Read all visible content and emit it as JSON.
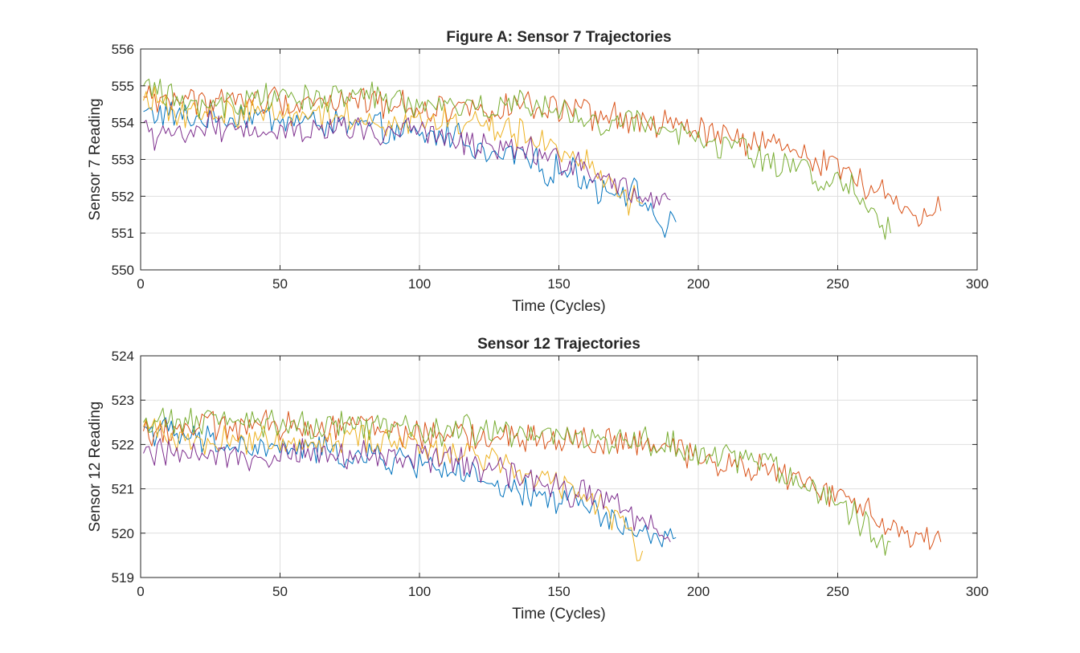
{
  "chart_data": [
    {
      "type": "line",
      "title": "Figure A: Sensor 7 Trajectories",
      "xlabel": "Time (Cycles)",
      "ylabel": "Sensor 7 Reading",
      "xlim": [
        0,
        300
      ],
      "ylim": [
        550,
        556
      ],
      "xticks": [
        "0",
        "50",
        "100",
        "150",
        "200",
        "250",
        "300"
      ],
      "yticks": [
        "550",
        "551",
        "552",
        "553",
        "554",
        "555",
        "556"
      ],
      "grid": true,
      "series": [
        {
          "color": "#0072BD",
          "x": [
            1,
            20,
            40,
            60,
            80,
            100,
            115,
            125,
            135,
            145,
            155,
            165,
            175,
            183,
            188,
            192
          ],
          "y": [
            554.3,
            554.1,
            554.2,
            554.0,
            553.9,
            553.6,
            553.7,
            553.0,
            553.2,
            552.7,
            552.7,
            552.2,
            552.2,
            551.7,
            551.0,
            551.3
          ]
        },
        {
          "color": "#D95319",
          "x": [
            1,
            20,
            40,
            60,
            80,
            100,
            120,
            140,
            160,
            180,
            200,
            215,
            230,
            245,
            255,
            265,
            275,
            287
          ],
          "y": [
            554.7,
            554.6,
            554.6,
            554.6,
            554.6,
            554.4,
            554.4,
            554.4,
            554.2,
            554.0,
            553.8,
            553.5,
            553.3,
            553.0,
            552.6,
            552.1,
            551.6,
            551.6
          ]
        },
        {
          "color": "#EDB120",
          "x": [
            1,
            20,
            40,
            60,
            80,
            100,
            120,
            135,
            145,
            155,
            165,
            172,
            180
          ],
          "y": [
            554.6,
            554.2,
            554.3,
            554.3,
            554.1,
            554.0,
            554.0,
            553.7,
            553.4,
            553.1,
            552.7,
            552.0,
            551.8
          ]
        },
        {
          "color": "#7E2F8E",
          "x": [
            1,
            5,
            20,
            40,
            60,
            80,
            100,
            115,
            125,
            135,
            145,
            155,
            165,
            175,
            183,
            190
          ],
          "y": [
            554.0,
            553.4,
            553.9,
            553.9,
            553.8,
            553.8,
            553.7,
            553.5,
            553.3,
            553.4,
            553.1,
            552.9,
            552.6,
            552.2,
            551.9,
            551.9
          ]
        },
        {
          "color": "#77AC30",
          "x": [
            1,
            20,
            40,
            60,
            80,
            100,
            120,
            140,
            160,
            180,
            200,
            215,
            230,
            245,
            255,
            262,
            269
          ],
          "y": [
            555.0,
            554.4,
            554.6,
            554.7,
            554.7,
            554.5,
            554.4,
            554.5,
            554.0,
            554.0,
            553.5,
            553.4,
            552.8,
            552.5,
            552.2,
            551.8,
            551.0
          ]
        }
      ]
    },
    {
      "type": "line",
      "title": "Sensor 12 Trajectories",
      "xlabel": "Time (Cycles)",
      "ylabel": "Sensor 12 Reading",
      "xlim": [
        0,
        300
      ],
      "ylim": [
        519,
        524
      ],
      "xticks": [
        "0",
        "50",
        "100",
        "150",
        "200",
        "250",
        "300"
      ],
      "yticks": [
        "519",
        "520",
        "521",
        "522",
        "523",
        "524"
      ],
      "grid": true,
      "series": [
        {
          "color": "#0072BD",
          "x": [
            1,
            20,
            40,
            60,
            80,
            100,
            115,
            125,
            135,
            145,
            155,
            165,
            175,
            183,
            188,
            192
          ],
          "y": [
            522.4,
            522.1,
            521.9,
            521.9,
            521.7,
            521.6,
            521.4,
            521.0,
            520.9,
            520.8,
            520.8,
            520.4,
            520.1,
            519.9,
            519.8,
            519.9
          ]
        },
        {
          "color": "#D95319",
          "x": [
            1,
            20,
            40,
            60,
            80,
            100,
            120,
            140,
            160,
            180,
            200,
            215,
            230,
            245,
            255,
            265,
            275,
            287
          ],
          "y": [
            522.3,
            522.4,
            522.4,
            522.4,
            522.5,
            522.2,
            522.2,
            522.1,
            522.1,
            522.0,
            521.7,
            521.6,
            521.3,
            521.0,
            520.6,
            520.4,
            520.0,
            519.8
          ]
        },
        {
          "color": "#EDB120",
          "x": [
            1,
            20,
            40,
            60,
            80,
            100,
            120,
            135,
            145,
            155,
            165,
            172,
            180
          ],
          "y": [
            522.4,
            522.1,
            522.1,
            522.1,
            522.2,
            521.9,
            521.8,
            521.5,
            521.3,
            521.0,
            520.6,
            520.3,
            519.6
          ]
        },
        {
          "color": "#7E2F8E",
          "x": [
            1,
            20,
            40,
            60,
            80,
            100,
            115,
            125,
            135,
            145,
            155,
            165,
            175,
            183,
            190
          ],
          "y": [
            521.8,
            521.8,
            521.8,
            521.8,
            521.7,
            521.7,
            521.6,
            521.4,
            521.3,
            521.1,
            520.9,
            520.8,
            520.5,
            520.2,
            519.8
          ]
        },
        {
          "color": "#77AC30",
          "x": [
            1,
            20,
            40,
            60,
            80,
            100,
            120,
            140,
            160,
            180,
            200,
            215,
            230,
            245,
            255,
            262,
            269
          ],
          "y": [
            522.5,
            522.5,
            522.5,
            522.4,
            522.4,
            522.3,
            522.3,
            522.2,
            522.1,
            522.1,
            521.8,
            521.7,
            521.4,
            520.9,
            520.5,
            520.0,
            519.8
          ]
        }
      ]
    }
  ]
}
